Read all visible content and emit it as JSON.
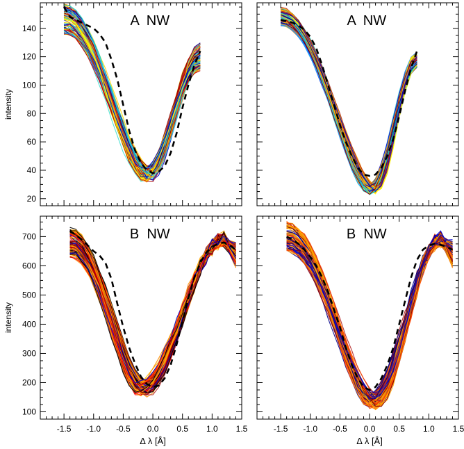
{
  "chart_data": [
    {
      "type": "line",
      "panel_label": "A  NW",
      "xlabel": "",
      "ylabel": "intensity",
      "xlim": [
        -1.9,
        1.5
      ],
      "ylim": [
        15,
        158
      ],
      "xticks": [
        -1.5,
        -1.0,
        -0.5,
        0.0,
        0.5,
        1.0,
        1.5
      ],
      "yticks": [
        20,
        40,
        60,
        80,
        100,
        120,
        140
      ],
      "x": [
        -1.5,
        -1.4,
        -1.3,
        -1.2,
        -1.1,
        -1.0,
        -0.9,
        -0.8,
        -0.7,
        -0.6,
        -0.5,
        -0.4,
        -0.3,
        -0.2,
        -0.1,
        0.0,
        0.1,
        0.2,
        0.3,
        0.4,
        0.5,
        0.6,
        0.7,
        0.8
      ],
      "bundle": {
        "min_x": -0.1,
        "min_y": 35,
        "left_y": 146,
        "right_y": 120,
        "spread": 11,
        "count": 90,
        "colors": [
          "#00008b",
          "#0000cd",
          "#1e90ff",
          "#00ced1",
          "#40e0d0",
          "#ffff00",
          "#ffd700",
          "#ffa500",
          "#ff8c00",
          "#b22222",
          "#8b0000",
          "#c00000"
        ]
      },
      "reference": {
        "name": "",
        "x": [
          -1.5,
          -1.4,
          -1.3,
          -1.2,
          -1.1,
          -1.0,
          -0.9,
          -0.8,
          -0.7,
          -0.6,
          -0.5,
          -0.4,
          -0.3,
          -0.2,
          -0.1,
          0.0,
          0.1,
          0.2,
          0.3,
          0.4,
          0.5,
          0.6,
          0.7,
          0.8
        ],
        "y": [
          155,
          148,
          146,
          144,
          142,
          140,
          136,
          130,
          118,
          104,
          86,
          68,
          54,
          45,
          40,
          38,
          39,
          43,
          52,
          66,
          84,
          100,
          114,
          124
        ]
      }
    },
    {
      "type": "line",
      "panel_label": "A  NW",
      "xlabel": "",
      "ylabel": "",
      "xlim": [
        -1.9,
        1.5
      ],
      "ylim": [
        15,
        158
      ],
      "xticks": [
        -1.5,
        -1.0,
        -0.5,
        0.0,
        0.5,
        1.0,
        1.5
      ],
      "yticks": [
        20,
        40,
        60,
        80,
        100,
        120,
        140
      ],
      "x": [
        -1.5,
        -1.4,
        -1.3,
        -1.2,
        -1.1,
        -1.0,
        -0.9,
        -0.8,
        -0.7,
        -0.6,
        -0.5,
        -0.4,
        -0.3,
        -0.2,
        -0.1,
        0.0,
        0.1,
        0.2,
        0.3,
        0.4,
        0.5,
        0.6,
        0.7,
        0.8
      ],
      "bundle": {
        "min_x": 0.05,
        "min_y": 25,
        "left_y": 148,
        "right_y": 118,
        "spread": 7,
        "count": 90,
        "colors": [
          "#00008b",
          "#0000cd",
          "#1e90ff",
          "#00ced1",
          "#40e0d0",
          "#ffff00",
          "#ffd700",
          "#ffa500",
          "#ff8c00",
          "#b22222",
          "#8b0000"
        ]
      },
      "reference": {
        "name": "",
        "x": [
          -1.5,
          -1.4,
          -1.3,
          -1.2,
          -1.1,
          -1.0,
          -0.9,
          -0.8,
          -0.7,
          -0.6,
          -0.5,
          -0.4,
          -0.3,
          -0.2,
          -0.1,
          0.0,
          0.1,
          0.2,
          0.3,
          0.4,
          0.5,
          0.6,
          0.7,
          0.8
        ],
        "y": [
          146,
          145,
          144,
          142,
          139,
          134,
          126,
          114,
          100,
          86,
          72,
          60,
          50,
          42,
          37,
          36,
          37,
          42,
          50,
          62,
          78,
          96,
          112,
          124
        ]
      }
    },
    {
      "type": "line",
      "panel_label": "B  NW",
      "xlabel": "Δ λ  [Å]",
      "ylabel": "intensity",
      "xlim": [
        -1.9,
        1.5
      ],
      "ylim": [
        75,
        770
      ],
      "xticks": [
        -1.5,
        -1.0,
        -0.5,
        0.0,
        0.5,
        1.0,
        1.5
      ],
      "yticks": [
        100,
        200,
        300,
        400,
        500,
        600,
        700
      ],
      "x": [
        -1.4,
        -1.3,
        -1.2,
        -1.1,
        -1.0,
        -0.9,
        -0.8,
        -0.7,
        -0.6,
        -0.5,
        -0.4,
        -0.3,
        -0.2,
        -0.1,
        0.0,
        0.1,
        0.2,
        0.3,
        0.4,
        0.5,
        0.6,
        0.7,
        0.8,
        0.9,
        1.0,
        1.1,
        1.2,
        1.3,
        1.4
      ],
      "bundle": {
        "min_x": -0.2,
        "min_y": 170,
        "left_y": 680,
        "right_y": 640,
        "peak_x": 1.2,
        "peak_y": 690,
        "spread": 55,
        "count": 90,
        "colors": [
          "#0000cd",
          "#ff0000",
          "#ffa500",
          "#ff8c00",
          "#ffb000",
          "#b22222",
          "#8b0000",
          "#000000"
        ]
      },
      "reference": {
        "name": "",
        "x": [
          -1.4,
          -1.3,
          -1.2,
          -1.1,
          -1.0,
          -0.9,
          -0.8,
          -0.7,
          -0.6,
          -0.5,
          -0.4,
          -0.3,
          -0.2,
          -0.1,
          0.0,
          0.1,
          0.2,
          0.3,
          0.4,
          0.5,
          0.6,
          0.7,
          0.8,
          0.9,
          1.0,
          1.1,
          1.2,
          1.3,
          1.4
        ],
        "y": [
          720,
          705,
          690,
          670,
          650,
          635,
          610,
          555,
          470,
          390,
          320,
          265,
          220,
          195,
          185,
          190,
          215,
          260,
          330,
          410,
          490,
          560,
          610,
          645,
          665,
          675,
          680,
          670,
          655
        ]
      }
    },
    {
      "type": "line",
      "panel_label": "B  NW",
      "xlabel": "Δ λ  [Å]",
      "ylabel": "",
      "xlim": [
        -1.9,
        1.5
      ],
      "ylim": [
        75,
        770
      ],
      "xticks": [
        -1.5,
        -1.0,
        -0.5,
        0.0,
        0.5,
        1.0,
        1.5
      ],
      "yticks": [
        100,
        200,
        300,
        400,
        500,
        600,
        700
      ],
      "x": [
        -1.4,
        -1.3,
        -1.2,
        -1.1,
        -1.0,
        -0.9,
        -0.8,
        -0.7,
        -0.6,
        -0.5,
        -0.4,
        -0.3,
        -0.2,
        -0.1,
        0.0,
        0.1,
        0.2,
        0.3,
        0.4,
        0.5,
        0.6,
        0.7,
        0.8,
        0.9,
        1.0,
        1.1,
        1.2,
        1.3,
        1.4
      ],
      "bundle": {
        "min_x": 0.05,
        "min_y": 125,
        "left_y": 700,
        "right_y": 640,
        "peak_x": 1.2,
        "peak_y": 690,
        "spread": 55,
        "count": 90,
        "colors": [
          "#00008b",
          "#0000cd",
          "#ffa500",
          "#ff8c00",
          "#ffb000",
          "#b22222",
          "#8b0000",
          "#ff4500"
        ]
      },
      "reference": {
        "name": "",
        "x": [
          -1.4,
          -1.3,
          -1.2,
          -1.1,
          -1.0,
          -0.9,
          -0.8,
          -0.7,
          -0.6,
          -0.5,
          -0.4,
          -0.3,
          -0.2,
          -0.1,
          0.0,
          0.1,
          0.2,
          0.3,
          0.4,
          0.5,
          0.6,
          0.7,
          0.8,
          0.9,
          1.0,
          1.1,
          1.2,
          1.3,
          1.4
        ],
        "y": [
          700,
          690,
          675,
          655,
          630,
          600,
          560,
          510,
          450,
          390,
          320,
          260,
          215,
          185,
          175,
          185,
          215,
          260,
          320,
          400,
          480,
          560,
          620,
          655,
          670,
          675,
          672,
          665,
          655
        ]
      }
    }
  ]
}
